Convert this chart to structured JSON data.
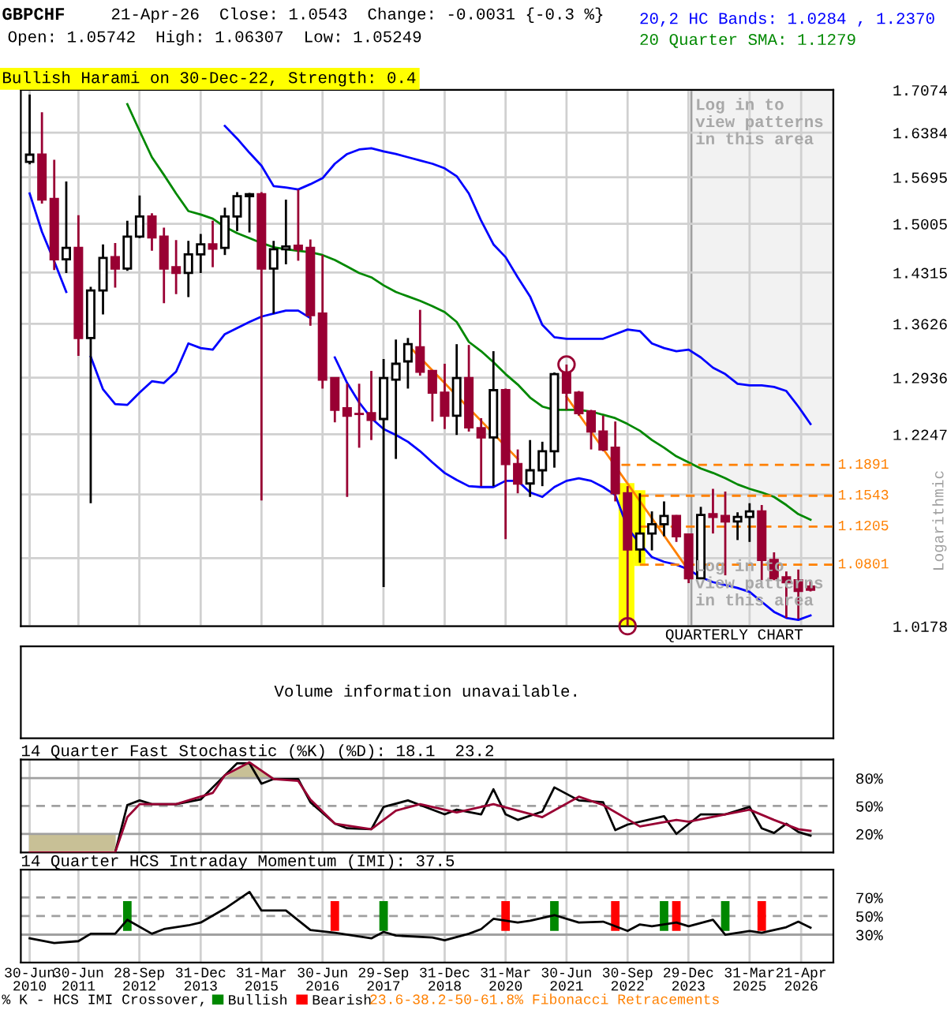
{
  "chart_data": [
    {
      "type": "candlestick",
      "title": "GBPCHF",
      "colors": [
        "#ffffff",
        "#990033",
        "#990033",
        "#ffffff",
        "#990033",
        "#ffffff",
        "#ffffff",
        "#990033",
        "#ffffff",
        "#ffffff",
        "#990033",
        "#990033",
        "#990033",
        "#ffffff",
        "#ffffff",
        "#990033",
        "#ffffff",
        "#ffffff",
        "#ffffff",
        "#990033",
        "#ffffff",
        "#ffffff",
        "#990033",
        "#990033",
        "#990033",
        "#990033",
        "#990033",
        "#990033",
        "#990033",
        "#ffffff",
        "#ffffff",
        "#ffffff",
        "#990033",
        "#990033",
        "#990033",
        "#ffffff",
        "#990033",
        "#990033",
        "#ffffff",
        "#990033",
        "#990033",
        "#ffffff",
        "#ffffff",
        "#ffffff",
        "#990033",
        "#990033",
        "#990033",
        "#990033",
        "#990033",
        "#990033",
        "#ffffff",
        "#ffffff",
        "#ffffff",
        "#990033",
        "#990033",
        "#ffffff",
        "#990033",
        "#990033",
        "#ffffff",
        "#ffffff",
        "#990033",
        "#990033",
        "#990033",
        "#990033",
        "#990033"
      ],
      "annotations": [
        "21-Apr-26  Close: 1.0543  Change: -0.0031 {-0.3 %}",
        "Open: 1.05742  High: 1.06307  Low: 1.05249",
        "Bullish Harami on 30-Dec-22, Strength: 0.4",
        "QUARTERLY CHART",
        "Log in to\nview patterns\nin this area",
        "23.6-38.2-50-61.8% Fibonacci Retracements",
        {
          "text": "1.1891",
          "x": "2026-12-18",
          "y": 1.1891
        },
        {
          "text": "1.1543",
          "x": "2026-12-18",
          "y": 1.1543
        },
        {
          "text": "1.1205",
          "x": "2026-12-18",
          "y": 1.1205
        },
        {
          "text": "1.0801",
          "x": "2026-12-18",
          "y": 1.0801
        }
      ],
      "ylabel": "Logarithmic",
      "log": true,
      "grid": true,
      "legend": "top right",
      "tick_labels": "y",
      "x": [
        "2010-06-30",
        "2010-09-30",
        "2010-12-31",
        "2011-03-31",
        "2011-06-30",
        "2011-09-30",
        "2011-12-31",
        "2012-03-31",
        "2012-06-30",
        "2012-09-30",
        "2012-12-31",
        "2013-03-31",
        "2013-06-30",
        "2013-09-30",
        "2013-12-31",
        "2014-03-31",
        "2014-06-30",
        "2014-09-30",
        "2014-12-31",
        "2015-03-31",
        "2015-06-30",
        "2015-09-30",
        "2015-12-31",
        "2016-03-31",
        "2016-06-30",
        "2016-09-30",
        "2016-12-31",
        "2017-03-31",
        "2017-06-30",
        "2017-09-30",
        "2017-12-31",
        "2018-03-31",
        "2018-06-30",
        "2018-09-30",
        "2018-12-31",
        "2019-03-31",
        "2019-06-30",
        "2019-09-30",
        "2019-12-31",
        "2020-03-31",
        "2020-06-30",
        "2020-09-30",
        "2020-12-31",
        "2021-03-31",
        "2021-06-30",
        "2021-09-30",
        "2021-12-31",
        "2022-03-31",
        "2022-06-30",
        "2022-09-30",
        "2022-12-31",
        "2023-03-31",
        "2023-06-30",
        "2023-09-30",
        "2023-12-31",
        "2024-03-31",
        "2024-06-30",
        "2024-09-30",
        "2024-12-31",
        "2025-03-31",
        "2025-06-30",
        "2025-09-30",
        "2025-12-31",
        "2026-03-31",
        "2026-06-30"
      ],
      "ohlc": [
        [
          1.593,
          1.7,
          1.589,
          1.604
        ],
        [
          1.604,
          1.671,
          1.53,
          1.536
        ],
        [
          1.537,
          1.596,
          1.435,
          1.45
        ],
        [
          1.45,
          1.563,
          1.431,
          1.466
        ],
        [
          1.466,
          1.513,
          1.321,
          1.344
        ],
        [
          1.344,
          1.412,
          1.146,
          1.407
        ],
        [
          1.407,
          1.471,
          1.375,
          1.452
        ],
        [
          1.453,
          1.473,
          1.411,
          1.437
        ],
        [
          1.437,
          1.505,
          1.434,
          1.482
        ],
        [
          1.482,
          1.542,
          1.48,
          1.511
        ],
        [
          1.511,
          1.516,
          1.462,
          1.481
        ],
        [
          1.482,
          1.495,
          1.39,
          1.437
        ],
        [
          1.439,
          1.477,
          1.402,
          1.431
        ],
        [
          1.431,
          1.476,
          1.398,
          1.457
        ],
        [
          1.457,
          1.486,
          1.431,
          1.471
        ],
        [
          1.471,
          1.505,
          1.439,
          1.465
        ],
        [
          1.466,
          1.524,
          1.456,
          1.511
        ],
        [
          1.511,
          1.547,
          1.49,
          1.541
        ],
        [
          1.541,
          1.546,
          1.488,
          1.544
        ],
        [
          1.544,
          1.547,
          1.149,
          1.437
        ],
        [
          1.437,
          1.476,
          1.376,
          1.464
        ],
        [
          1.464,
          1.536,
          1.443,
          1.468
        ],
        [
          1.469,
          1.551,
          1.448,
          1.464
        ],
        [
          1.466,
          1.478,
          1.36,
          1.374
        ],
        [
          1.376,
          1.456,
          1.28,
          1.291
        ],
        [
          1.293,
          1.293,
          1.239,
          1.254
        ],
        [
          1.256,
          1.286,
          1.153,
          1.247
        ],
        [
          1.249,
          1.286,
          1.209,
          1.249
        ],
        [
          1.25,
          1.302,
          1.218,
          1.242
        ],
        [
          1.243,
          1.317,
          1.057,
          1.293
        ],
        [
          1.291,
          1.342,
          1.196,
          1.311
        ],
        [
          1.314,
          1.344,
          1.28,
          1.336
        ],
        [
          1.332,
          1.381,
          1.296,
          1.301
        ],
        [
          1.302,
          1.302,
          1.24,
          1.275
        ],
        [
          1.275,
          1.311,
          1.231,
          1.247
        ],
        [
          1.247,
          1.336,
          1.224,
          1.293
        ],
        [
          1.293,
          1.335,
          1.228,
          1.233
        ],
        [
          1.232,
          1.244,
          1.165,
          1.221
        ],
        [
          1.221,
          1.327,
          1.165,
          1.278
        ],
        [
          1.278,
          1.28,
          1.107,
          1.19
        ],
        [
          1.19,
          1.207,
          1.157,
          1.168
        ],
        [
          1.168,
          1.218,
          1.153,
          1.183
        ],
        [
          1.183,
          1.216,
          1.165,
          1.205
        ],
        [
          1.205,
          1.3,
          1.186,
          1.298
        ],
        [
          1.3,
          1.31,
          1.254,
          1.275
        ],
        [
          1.275,
          1.277,
          1.247,
          1.25
        ],
        [
          1.252,
          1.254,
          1.207,
          1.228
        ],
        [
          1.228,
          1.247,
          1.205,
          1.207
        ],
        [
          1.209,
          1.24,
          1.148,
          1.157
        ],
        [
          1.157,
          1.165,
          1.0178,
          1.096
        ],
        [
          1.096,
          1.157,
          1.082,
          1.113
        ],
        [
          1.113,
          1.137,
          1.095,
          1.123
        ],
        [
          1.123,
          1.148,
          1.11,
          1.132
        ],
        [
          1.132,
          1.133,
          1.104,
          1.11
        ],
        [
          1.112,
          1.113,
          1.061,
          1.066
        ],
        [
          1.066,
          1.142,
          1.065,
          1.133
        ],
        [
          1.134,
          1.162,
          1.113,
          1.131
        ],
        [
          1.132,
          1.159,
          1.069,
          1.126
        ],
        [
          1.126,
          1.136,
          1.106,
          1.131
        ],
        [
          1.131,
          1.146,
          1.104,
          1.137
        ],
        [
          1.137,
          1.144,
          1.064,
          1.085
        ],
        [
          1.085,
          1.093,
          1.064,
          1.066
        ],
        [
          1.067,
          1.073,
          1.026,
          1.062
        ],
        [
          1.064,
          1.075,
          1.025,
          1.053
        ],
        [
          1.0574,
          1.0631,
          1.0525,
          1.0543
        ]
      ],
      "series": [
        {
          "type": "line",
          "name": "20,2 HC Bands: 1.0284 , 1.2370",
          "color": "#0000ff",
          "values": [
            null,
            null,
            null,
            null,
            null,
            null,
            null,
            null,
            null,
            null,
            null,
            null,
            null,
            null,
            null,
            null,
            1.649,
            1.629,
            1.607,
            1.587,
            1.556,
            1.554,
            1.551,
            1.559,
            1.568,
            1.59,
            1.605,
            1.612,
            1.614,
            1.609,
            1.605,
            1.6,
            1.595,
            1.59,
            1.583,
            1.571,
            1.545,
            1.505,
            1.471,
            1.453,
            1.425,
            1.399,
            1.361,
            1.345,
            1.343,
            1.343,
            1.343,
            1.343,
            1.349,
            1.355,
            1.353,
            1.337,
            1.331,
            1.327,
            1.329,
            1.319,
            1.306,
            1.298,
            1.286,
            1.284,
            1.284,
            1.282,
            1.277,
            1.258,
            1.237
          ]
        },
        {
          "type": "line",
          "color": "#0000ff",
          "values": [
            1.545,
            1.489,
            1.447,
            1.405,
            null,
            1.32,
            1.279,
            1.261,
            1.26,
            1.275,
            1.289,
            1.287,
            1.301,
            1.337,
            1.331,
            1.329,
            1.349,
            1.357,
            1.365,
            1.372,
            1.376,
            1.38,
            1.38,
            1.37,
            null,
            1.319,
            1.287,
            1.263,
            1.244,
            1.231,
            1.224,
            1.216,
            1.205,
            1.192,
            1.18,
            1.172,
            1.165,
            1.164,
            1.164,
            1.171,
            1.171,
            1.158,
            1.153,
            1.164,
            1.171,
            1.174,
            1.171,
            1.164,
            1.155,
            1.119,
            1.102,
            1.088,
            1.083,
            1.08,
            1.075,
            1.067,
            1.062,
            1.059,
            1.056,
            1.052,
            1.042,
            1.032,
            1.026,
            1.024,
            1.0284
          ]
        },
        {
          "type": "line",
          "name": "20 Quarter SMA: 1.1279",
          "color": "#008800",
          "values": [
            null,
            null,
            null,
            null,
            null,
            null,
            null,
            null,
            1.684,
            1.641,
            1.6,
            1.573,
            1.545,
            1.519,
            1.514,
            1.508,
            1.496,
            1.487,
            1.48,
            1.473,
            1.467,
            1.464,
            1.462,
            1.46,
            1.456,
            1.449,
            1.44,
            1.431,
            1.425,
            1.414,
            1.405,
            1.399,
            1.393,
            1.386,
            1.378,
            1.365,
            1.339,
            1.327,
            1.313,
            1.298,
            1.285,
            1.269,
            1.258,
            1.254,
            1.254,
            1.254,
            1.252,
            1.248,
            1.244,
            1.237,
            1.229,
            1.218,
            1.209,
            1.199,
            1.192,
            1.185,
            1.18,
            1.174,
            1.167,
            1.162,
            1.158,
            1.153,
            1.144,
            1.134,
            1.1279
          ]
        },
        {
          "type": "line",
          "color": "#ff8000",
          "x": [
            "2018-03-31",
            "2020-06-30"
          ],
          "values": [
            1.335,
            1.196
          ]
        },
        {
          "type": "line",
          "color": "#ff8000",
          "x": [
            "2021-06-30",
            "2023-12-31"
          ],
          "values": [
            1.27,
            1.074
          ]
        },
        {
          "type": "line",
          "color": "#ff8000",
          "line_style": "dashed",
          "x": [
            "2022-08-15",
            "2026-12-18"
          ],
          "values": [
            1.1891,
            1.1891
          ]
        },
        {
          "type": "line",
          "color": "#ff8000",
          "line_style": "dashed",
          "x": [
            "2022-12-31",
            "2026-12-18"
          ],
          "values": [
            1.1543,
            1.1543
          ]
        },
        {
          "type": "line",
          "color": "#ff8000",
          "line_style": "dashed",
          "x": [
            "2022-12-31",
            "2026-12-18"
          ],
          "values": [
            1.1205,
            1.1205
          ]
        },
        {
          "type": "line",
          "color": "#ff8000",
          "line_style": "dashed",
          "x": [
            "2022-12-31",
            "2026-12-18"
          ],
          "values": [
            1.0801,
            1.0801
          ]
        },
        {
          "type": "scatter",
          "marker": "circle",
          "color": "#990033",
          "x": [
            "2021-06-30",
            "2022-09-30"
          ],
          "values": [
            1.31,
            1.0178
          ]
        }
      ],
      "bands": [
        {
          "axis": "x",
          "from": "2024-01-20",
          "to": "2026-12-18",
          "label": "Log in to\nview patterns\nin this area",
          "color": "#f2f2f2"
        },
        {
          "axis": "x",
          "from": "2022-07-25",
          "to": "2022-11-20",
          "color": "#ffff00"
        },
        {
          "axis": "x",
          "from": "2022-11-20",
          "to": "2023-02-10",
          "color": "#ffff00"
        }
      ],
      "xlim": [
        "2010-04-25",
        "2026-12-18"
      ],
      "xticks": [
        {
          "value": "2010-06-30",
          "label": null
        },
        {
          "value": "2011-06-30",
          "label": null
        },
        {
          "value": "2012-09-28",
          "label": null
        },
        {
          "value": "2013-12-31",
          "label": null
        },
        {
          "value": "2015-03-31",
          "label": null
        },
        {
          "value": "2016-06-30",
          "label": null
        },
        {
          "value": "2017-09-29",
          "label": null
        },
        {
          "value": "2018-12-31",
          "label": null
        },
        {
          "value": "2020-03-31",
          "label": null
        },
        {
          "value": "2021-06-30",
          "label": null
        },
        {
          "value": "2022-09-30",
          "label": null
        },
        {
          "value": "2023-12-29",
          "label": null
        },
        {
          "value": "2025-03-31",
          "label": null
        },
        {
          "value": "2026-04-21",
          "label": null
        }
      ],
      "ylim": [
        1.0178,
        1.7074
      ],
      "yticks": [
        1.0178,
        {
          "value": 1.0868,
          "label": null
        },
        {
          "value": 1.1557,
          "label": null
        },
        1.2247,
        1.2936,
        1.3626,
        1.4315,
        1.5005,
        1.5695,
        1.6384,
        1.7074
      ]
    },
    {
      "type": "other",
      "annotations": [
        "Volume information unavailable."
      ]
    },
    {
      "type": "line",
      "title": "14 Quarter Fast Stochastic (%K) (%D): 18.1  23.2",
      "tick_labels": "y",
      "grid": "x",
      "series": [
        {
          "type": "area",
          "color": "#c8c096",
          "x": [
            "2010-06-30",
            "2012-03-31"
          ],
          "values": [
            20,
            20
          ]
        },
        {
          "type": "area",
          "color": "#c8c096",
          "x": [
            "2014-06-30",
            "2014-12-31",
            "2015-06-30"
          ],
          "values": [
            80,
            97,
            80
          ]
        },
        {
          "type": "line",
          "color": "#000000",
          "x": [
            "2010-06-30",
            "2012-03-31",
            "2012-06-30",
            "2012-09-30",
            "2012-12-31",
            "2013-06-30",
            "2013-12-31",
            "2014-03-31",
            "2014-09-30",
            "2014-12-31",
            "2015-03-31",
            "2015-06-30",
            "2015-12-31",
            "2016-03-31",
            "2016-09-30",
            "2016-12-31",
            "2017-06-30",
            "2017-09-30",
            "2018-03-31",
            "2018-12-31",
            "2019-03-31",
            "2019-09-30",
            "2019-12-31",
            "2020-03-31",
            "2020-06-30",
            "2020-12-31",
            "2021-03-31",
            "2021-09-30",
            "2022-03-31",
            "2022-06-30",
            "2022-09-30",
            "2023-06-30",
            "2023-09-30",
            "2024-03-31",
            "2024-09-30",
            "2025-03-31",
            "2025-06-30",
            "2025-09-30",
            "2025-12-31",
            "2026-03-31",
            "2026-06-30"
          ],
          "values": [
            0,
            0,
            51,
            56,
            52,
            52,
            57,
            70,
            96,
            96,
            74,
            79,
            79,
            54,
            31,
            26,
            25,
            49,
            56,
            41,
            46,
            41,
            68,
            41,
            35,
            44,
            70,
            56,
            54,
            24,
            30,
            39,
            20,
            41,
            41,
            49,
            26,
            21,
            31,
            22,
            18.1
          ]
        },
        {
          "type": "line",
          "color": "#990033",
          "x": [
            "2010-06-30",
            "2012-03-31",
            "2012-06-30",
            "2012-09-30",
            "2013-06-30",
            "2014-03-31",
            "2014-06-30",
            "2014-12-31",
            "2015-06-30",
            "2015-12-31",
            "2016-03-31",
            "2016-09-30",
            "2017-06-30",
            "2017-12-31",
            "2018-06-30",
            "2019-03-31",
            "2019-12-31",
            "2020-06-30",
            "2020-12-31",
            "2021-09-30",
            "2022-03-31",
            "2022-12-31",
            "2023-09-30",
            "2023-12-31",
            "2024-09-30",
            "2025-03-31",
            "2025-09-30",
            "2026-03-31",
            "2026-06-30"
          ],
          "values": [
            0,
            0,
            38,
            52,
            52,
            64,
            83,
            97,
            79,
            77,
            57,
            31,
            25,
            45,
            52,
            43,
            52,
            45,
            38,
            60,
            51,
            28,
            35,
            33,
            41,
            46,
            35,
            25,
            23.2
          ]
        }
      ],
      "ref_lines": [
        {
          "axis": "y",
          "value": 20,
          "color": "#a0a0a0"
        },
        {
          "axis": "y",
          "value": 50,
          "color": "#a0a0a0",
          "line_style": "dashed"
        },
        {
          "axis": "y",
          "value": 80,
          "color": "#a0a0a0"
        }
      ],
      "xlim": [
        "2010-04-25",
        "2026-12-18"
      ],
      "xticks": [
        {
          "value": "2010-06-30",
          "label": null
        },
        {
          "value": "2011-06-30",
          "label": null
        },
        {
          "value": "2012-09-28",
          "label": null
        },
        {
          "value": "2013-12-31",
          "label": null
        },
        {
          "value": "2015-03-31",
          "label": null
        },
        {
          "value": "2016-06-30",
          "label": null
        },
        {
          "value": "2017-09-29",
          "label": null
        },
        {
          "value": "2018-12-31",
          "label": null
        },
        {
          "value": "2020-03-31",
          "label": null
        },
        {
          "value": "2021-06-30",
          "label": null
        },
        {
          "value": "2022-09-30",
          "label": null
        },
        {
          "value": "2023-12-29",
          "label": null
        },
        {
          "value": "2025-03-31",
          "label": null
        },
        {
          "value": "2026-04-21",
          "label": null
        }
      ],
      "ylim": [
        0,
        100
      ],
      "yticks": [
        {
          "value": 20,
          "label": "20%"
        },
        {
          "value": 50,
          "label": "50%"
        },
        {
          "value": 80,
          "label": "80%"
        }
      ]
    },
    {
      "type": "line",
      "title": "14 Quarter HCS Intraday Momentum (IMI): 37.5",
      "grid": "x",
      "legend": "bottom",
      "legend_title": "% K - HCS IMI Crossover,",
      "series": [
        {
          "type": "bar",
          "name": "Bullish",
          "color": "#008800",
          "x": [
            "2012-06-30",
            "2017-09-30",
            "2021-03-31",
            "2023-06-30",
            "2024-09-30"
          ],
          "values": [
            32,
            32,
            32,
            32,
            32
          ],
          "base": [
            34,
            34,
            34,
            34,
            34
          ]
        },
        {
          "type": "bar",
          "name": "Bearish",
          "color": "#ff0000",
          "x": [
            "2016-09-30",
            "2020-03-31",
            "2022-06-30",
            "2023-09-30",
            "2025-06-30"
          ],
          "values": [
            32,
            32,
            32,
            32,
            32
          ],
          "base": [
            34,
            34,
            34,
            34,
            34
          ]
        },
        {
          "type": "line",
          "color": "#000000",
          "x": [
            "2010-06-30",
            "2010-12-31",
            "2011-06-30",
            "2011-09-30",
            "2012-03-31",
            "2012-06-30",
            "2012-12-31",
            "2013-03-31",
            "2013-09-30",
            "2013-12-31",
            "2014-06-30",
            "2014-12-31",
            "2015-03-31",
            "2015-09-30",
            "2016-03-31",
            "2016-09-30",
            "2017-06-30",
            "2017-09-30",
            "2017-12-31",
            "2018-09-30",
            "2018-12-31",
            "2019-06-30",
            "2019-09-30",
            "2019-12-31",
            "2020-06-30",
            "2020-09-30",
            "2021-03-31",
            "2021-09-30",
            "2022-03-31",
            "2022-09-30",
            "2022-12-31",
            "2023-03-31",
            "2023-09-30",
            "2023-12-31",
            "2024-06-30",
            "2024-09-30",
            "2025-03-31",
            "2025-06-30",
            "2025-12-31",
            "2026-03-31",
            "2026-06-30"
          ],
          "values": [
            26,
            21,
            23,
            31,
            31,
            46,
            31,
            36,
            40,
            43,
            58,
            76,
            56,
            56,
            35,
            32,
            26,
            33,
            29,
            27,
            24,
            31,
            36,
            47,
            43,
            45,
            51,
            43,
            44,
            34,
            41,
            39,
            43,
            39,
            46,
            30,
            34,
            32,
            38,
            44,
            37.5
          ]
        }
      ],
      "ref_lines": [
        {
          "axis": "y",
          "value": 30,
          "color": "#a0a0a0"
        },
        {
          "axis": "y",
          "value": 50,
          "color": "#a0a0a0",
          "line_style": "dashed"
        },
        {
          "axis": "y",
          "value": 70,
          "color": "#a0a0a0",
          "line_style": "dashed"
        }
      ],
      "xlim": [
        "2010-04-25",
        "2026-12-18"
      ],
      "xticks": [
        {
          "value": "2010-06-30",
          "label": "30-Jun\n2010"
        },
        {
          "value": "2011-06-30",
          "label": "30-Jun\n2011"
        },
        {
          "value": "2012-09-28",
          "label": "28-Sep\n2012"
        },
        {
          "value": "2013-12-31",
          "label": "31-Dec\n2013"
        },
        {
          "value": "2015-03-31",
          "label": "31-Mar\n2015"
        },
        {
          "value": "2016-06-30",
          "label": "30-Jun\n2016"
        },
        {
          "value": "2017-09-29",
          "label": "29-Sep\n2017"
        },
        {
          "value": "2018-12-31",
          "label": "31-Dec\n2018"
        },
        {
          "value": "2020-03-31",
          "label": "31-Mar\n2020"
        },
        {
          "value": "2021-06-30",
          "label": "30-Jun\n2021"
        },
        {
          "value": "2022-09-30",
          "label": "30-Sep\n2022"
        },
        {
          "value": "2023-12-29",
          "label": "29-Dec\n2023"
        },
        {
          "value": "2025-03-31",
          "label": "31-Mar\n2025"
        },
        {
          "value": "2026-04-21",
          "label": "21-Apr\n2026"
        }
      ],
      "ylim": [
        0,
        100
      ],
      "yticks": [
        {
          "value": 30,
          "label": "30%"
        },
        {
          "value": 50,
          "label": "50%"
        },
        {
          "value": 70,
          "label": "70%"
        }
      ]
    }
  ]
}
